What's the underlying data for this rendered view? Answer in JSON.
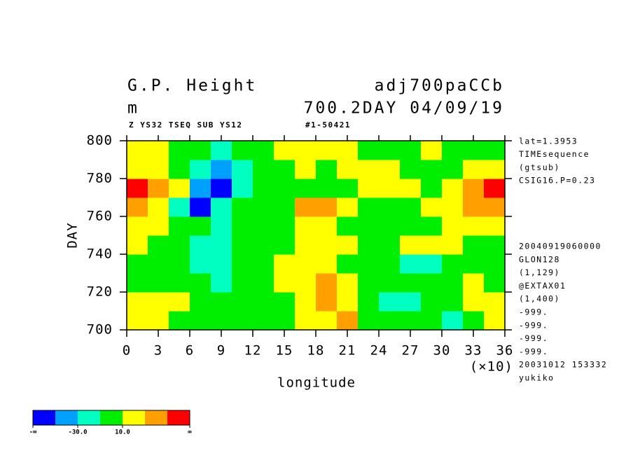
{
  "chart_data": {
    "type": "heatmap",
    "title": "G.P. Height",
    "title_right": "adj700paCCb",
    "subtitle": "m",
    "subtitle_right": "700.2DAY 04/09/19",
    "caption": "Z YS32 TSEQ SUB YS12",
    "caption_right": "#1-50421",
    "xlabel": "longitude",
    "xunit": "(×10)",
    "ylabel": "DAY",
    "xlim": [
      0,
      36
    ],
    "xticks": [
      0,
      3,
      6,
      9,
      12,
      15,
      18,
      21,
      24,
      27,
      30,
      33,
      36
    ],
    "ylim": [
      700,
      800
    ],
    "yticks": [
      700,
      720,
      740,
      760,
      780,
      800
    ],
    "xbins": [
      0,
      2,
      4,
      6,
      8,
      10,
      12,
      14,
      16,
      18,
      20,
      22,
      24,
      26,
      28,
      30,
      32,
      34,
      36
    ],
    "ybins": [
      700,
      710,
      720,
      730,
      740,
      750,
      760,
      770,
      780,
      790,
      800
    ],
    "z": [
      [
        20,
        10,
        0,
        0,
        0,
        0,
        0,
        0,
        20,
        20,
        30,
        0,
        0,
        0,
        0,
        -20,
        0,
        10
      ],
      [
        20,
        20,
        20,
        0,
        0,
        0,
        -10,
        0,
        20,
        30,
        20,
        0,
        -20,
        -20,
        0,
        0,
        20,
        20
      ],
      [
        0,
        0,
        0,
        -10,
        -20,
        0,
        0,
        10,
        20,
        30,
        20,
        0,
        0,
        -10,
        0,
        0,
        10,
        0
      ],
      [
        0,
        0,
        0,
        -20,
        -20,
        -10,
        0,
        10,
        20,
        20,
        0,
        0,
        -10,
        -30,
        -20,
        0,
        0,
        0
      ],
      [
        10,
        0,
        0,
        -20,
        -20,
        0,
        0,
        0,
        20,
        20,
        10,
        0,
        0,
        10,
        20,
        20,
        0,
        0
      ],
      [
        20,
        10,
        0,
        -10,
        -20,
        0,
        0,
        0,
        10,
        20,
        0,
        0,
        0,
        0,
        0,
        10,
        20,
        20
      ],
      [
        30,
        20,
        -20,
        -60,
        -20,
        -10,
        0,
        0,
        30,
        30,
        20,
        0,
        0,
        0,
        10,
        20,
        30,
        40
      ],
      [
        50,
        30,
        10,
        -40,
        -60,
        -20,
        -10,
        0,
        0,
        0,
        0,
        10,
        20,
        10,
        0,
        20,
        30,
        50
      ],
      [
        20,
        20,
        0,
        -20,
        -40,
        -20,
        0,
        0,
        10,
        0,
        10,
        20,
        10,
        0,
        0,
        0,
        10,
        20
      ],
      [
        20,
        20,
        0,
        -10,
        -20,
        0,
        0,
        10,
        20,
        20,
        10,
        0,
        0,
        0,
        10,
        0,
        0,
        0
      ]
    ],
    "levels": [
      -50,
      -30,
      -10,
      10,
      30,
      50
    ],
    "colors": [
      "#0000ff",
      "#00a0ff",
      "#00ffc0",
      "#00ee00",
      "#ffff00",
      "#ffa000",
      "#ff0000"
    ],
    "colorbar_labels": [
      "-∞",
      "-30.0",
      "10.0",
      "∞"
    ],
    "notes_top": [
      "lat=1.3953",
      "TIMEsequence",
      "(gtsub)",
      "CSIG16.P=0.23"
    ],
    "notes_bottom": [
      "20040919060000",
      "GLON128",
      "(1,129)",
      "@EXTAX01",
      "(1,400)",
      "-999.",
      "-999.",
      "-999.",
      "-999.",
      "20031012 153332",
      "yukiko"
    ]
  }
}
